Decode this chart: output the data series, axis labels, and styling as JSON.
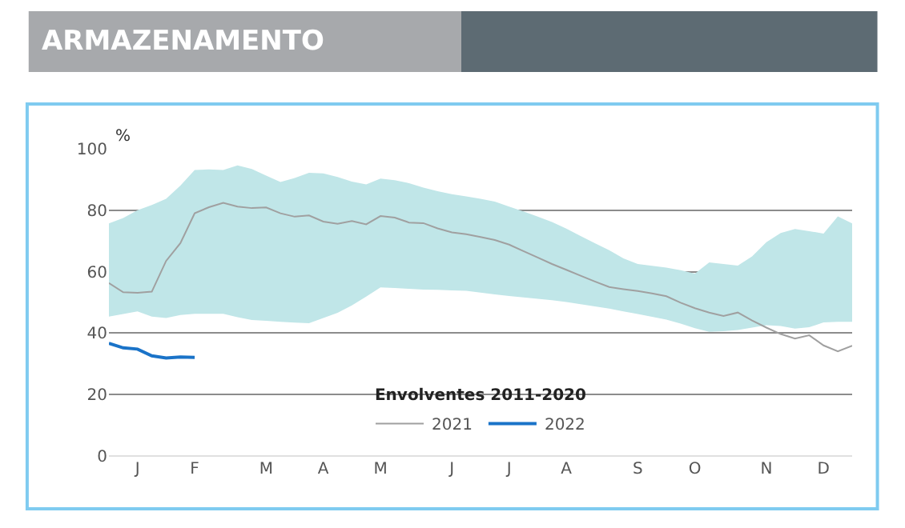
{
  "chart_data": {
    "type": "line",
    "title": "ARMAZENAMENTO",
    "ylabel": "%",
    "legend_title": "Envolventes 2011-2020",
    "categories": [
      null,
      null,
      "J",
      null,
      null,
      null,
      "F",
      null,
      null,
      null,
      null,
      "M",
      null,
      null,
      null,
      "A",
      null,
      null,
      null,
      "M",
      null,
      null,
      null,
      null,
      "J",
      null,
      null,
      null,
      "J",
      null,
      null,
      null,
      "A",
      null,
      null,
      null,
      null,
      "S",
      null,
      null,
      null,
      "O",
      null,
      null,
      null,
      null,
      "N",
      null,
      null,
      null,
      "D",
      null,
      null
    ],
    "ylim": [
      0,
      100
    ],
    "yticks": [
      0,
      20,
      40,
      60,
      80,
      100
    ],
    "grid": "y",
    "legend": "bottom",
    "series": [
      {
        "type": "line",
        "color": "#c0e6e8",
        "values": [
          null,
          null,
          null,
          null,
          null,
          null,
          null,
          null,
          null,
          null,
          null,
          null,
          null,
          null,
          null,
          null,
          null,
          null,
          null,
          null,
          null,
          null,
          null,
          null,
          null,
          null,
          null,
          null,
          null,
          null,
          null,
          null,
          null,
          null,
          null,
          null,
          null,
          null,
          null,
          null,
          null,
          null,
          null,
          null,
          null,
          null,
          null,
          null,
          null,
          null,
          null,
          null,
          null
        ],
        "upper": [
          75.7,
          77.5,
          80,
          81.7,
          83.7,
          88,
          93.1,
          93.3,
          93.1,
          94.6,
          93.4,
          91.3,
          89.2,
          90.5,
          92.2,
          92,
          90.8,
          89.3,
          88.4,
          90.3,
          89.8,
          88.8,
          87.4,
          86.2,
          85.2,
          84.5,
          83.7,
          82.8,
          81.2,
          79.6,
          77.9,
          76.2,
          74,
          71.6,
          69.3,
          67,
          64.3,
          62.5,
          61.9,
          61.3,
          60.5,
          59.4,
          63,
          62.5,
          62,
          65,
          69.6,
          72.6,
          73.9,
          73.2,
          72.4,
          78,
          75.7
        ],
        "lower": [
          45.4,
          46.2,
          47.1,
          45.4,
          44.9,
          45.9,
          46.3,
          46.3,
          46.3,
          45.2,
          44.3,
          44,
          43.7,
          43.4,
          43.2,
          44.9,
          46.6,
          49,
          51.9,
          54.9,
          54.7,
          54.4,
          54.2,
          54.1,
          53.9,
          53.8,
          53.2,
          52.6,
          52.1,
          51.6,
          51.2,
          50.7,
          50.1,
          49.4,
          48.7,
          48,
          47.1,
          46.2,
          45.3,
          44.4,
          43.1,
          41.6,
          40.4,
          40.6,
          41,
          41.8,
          42.6,
          42.3,
          41.5,
          41.9,
          43.5,
          43.7,
          43.7
        ]
      },
      {
        "name": "2021",
        "color": "#a0a0a0",
        "values": [
          56.3,
          53.3,
          53.1,
          53.5,
          63.5,
          69.3,
          79,
          81,
          82.4,
          81.2,
          80.7,
          80.9,
          79,
          77.9,
          78.3,
          76.3,
          75.6,
          76.5,
          75.4,
          78.1,
          77.6,
          76,
          75.8,
          74.1,
          72.8,
          72.2,
          71.3,
          70.3,
          68.8,
          66.7,
          64.6,
          62.5,
          60.6,
          58.7,
          56.8,
          55,
          54.3,
          53.7,
          52.9,
          52,
          49.9,
          48.1,
          46.7,
          45.6,
          46.7,
          44.1,
          41.8,
          39.7,
          38.2,
          39.3,
          36,
          34.1,
          35.9
        ]
      },
      {
        "name": "2022",
        "color": "#1a73c8",
        "values": [
          36.7,
          35.2,
          34.8,
          32.6,
          31.9,
          32.2,
          32.1,
          null,
          null,
          null,
          null,
          null,
          null,
          null,
          null,
          null,
          null,
          null,
          null,
          null,
          null,
          null,
          null,
          null,
          null,
          null,
          null,
          null,
          null,
          null,
          null,
          null,
          null,
          null,
          null,
          null,
          null,
          null,
          null,
          null,
          null,
          null,
          null,
          null,
          null,
          null,
          null,
          null,
          null,
          null,
          null,
          null,
          null
        ]
      }
    ]
  }
}
